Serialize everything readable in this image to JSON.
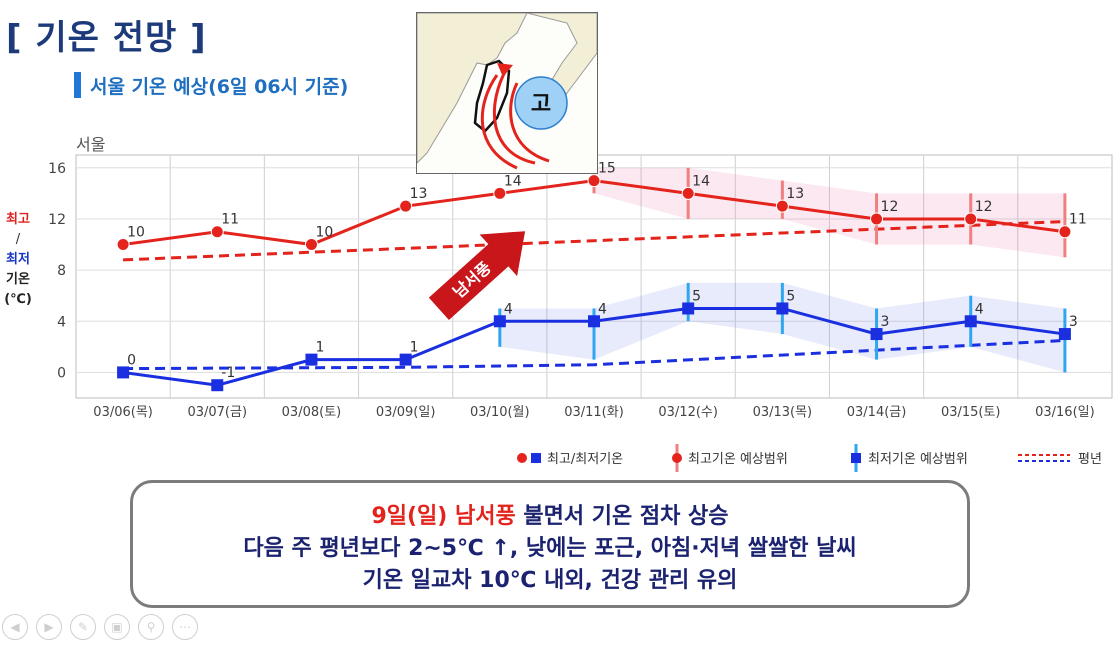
{
  "title": "[ 기온 전망 ]",
  "subtitle": "서울 기온 예상(6일 06시 기준)",
  "station": "서울",
  "yaxis_label": {
    "hi": "최고",
    "sep": "/",
    "lo": "최저",
    "k1": "기온",
    "k2": "(℃)"
  },
  "map_inset": {
    "high_label": "고",
    "wind_label": "남서풍"
  },
  "legend": {
    "minmax": "최고/최저기온",
    "hi_range": "최고기온 예상범위",
    "lo_range": "최저기온 예상범위",
    "normal": "평년"
  },
  "colors": {
    "high": "#e3231c",
    "low": "#1a2fe0",
    "low_range": "#2ea6f0",
    "high_range": "#f08080"
  },
  "chart_data": {
    "type": "line",
    "categories": [
      "03/06(목)",
      "03/07(금)",
      "03/08(토)",
      "03/09(일)",
      "03/10(월)",
      "03/11(화)",
      "03/12(수)",
      "03/13(목)",
      "03/14(금)",
      "03/15(토)",
      "03/16(일)"
    ],
    "ylim": [
      -2,
      17
    ],
    "yticks": [
      0,
      4,
      8,
      12,
      16
    ],
    "grid": true,
    "series": [
      {
        "name": "최고기온",
        "values": [
          10,
          11,
          10,
          13,
          14,
          15,
          14,
          13,
          12,
          12,
          11
        ],
        "range": [
          null,
          null,
          null,
          null,
          null,
          [
            14,
            16
          ],
          [
            12,
            16
          ],
          [
            12,
            15
          ],
          [
            10,
            14
          ],
          [
            10,
            14
          ],
          [
            9,
            14
          ]
        ]
      },
      {
        "name": "최저기온",
        "values": [
          0,
          -1,
          1,
          1,
          4,
          4,
          5,
          5,
          3,
          4,
          3
        ],
        "range": [
          null,
          null,
          null,
          null,
          [
            2,
            5
          ],
          [
            1,
            5
          ],
          [
            4,
            7
          ],
          [
            3,
            7
          ],
          [
            1,
            5
          ],
          [
            2,
            6
          ],
          [
            0,
            5
          ]
        ]
      },
      {
        "name": "평년 최고",
        "values": [
          8.8,
          null,
          null,
          null,
          null,
          null,
          null,
          null,
          null,
          null,
          11.8
        ]
      },
      {
        "name": "평년 최저",
        "values": [
          0.3,
          null,
          null,
          0.4,
          0.5,
          0.6,
          null,
          null,
          null,
          null,
          2.5
        ]
      }
    ]
  },
  "summary": {
    "line1_red": "9일(일) 남서풍",
    "line1_rest": " 불면서 기온 점차 상승",
    "line2": "다음 주 평년보다 2~5℃ ↑, 낮에는 포근, 아침·저녁 쌀쌀한 날씨",
    "line3": "기온 일교차 10℃ 내외, 건강 관리 유의"
  },
  "controls": [
    "◀",
    "▶",
    "✎",
    "▣",
    "⚲",
    "⋯"
  ]
}
